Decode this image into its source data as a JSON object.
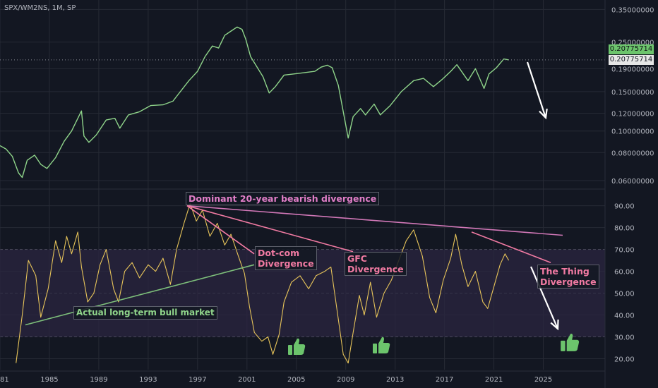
{
  "symbol_label": "SPX/WM2NS, 1M, SP",
  "colors": {
    "background": "#131722",
    "price_line": "#8fd48a",
    "osc_line": "#e8c55a",
    "band_fill": "#2b2640",
    "pink": "#f07aa2",
    "green_line": "#7dbf7a",
    "white_arrow": "#ffffff",
    "grid": "#262a35",
    "badge_bg": "#6cc46c",
    "icon": "#6cc46c"
  },
  "price_badges": {
    "current": "0.20775714",
    "last": "0.20775714"
  },
  "chart_data": [
    {
      "type": "line",
      "name": "price",
      "title": "SPX/WM2NS, 1M, SP",
      "scale": "log",
      "ylim": [
        0.055,
        0.38
      ],
      "xlim": [
        1981,
        2030
      ],
      "y_ticks": [
        "0.35000000",
        "0.25000000",
        "0.19000000",
        "0.15000000",
        "0.12000000",
        "0.10000000",
        "0.08000000",
        "0.06000000"
      ],
      "y_tick_values": [
        0.35,
        0.25,
        0.19,
        0.15,
        0.12,
        0.1,
        0.08,
        0.06
      ],
      "points": [
        [
          1981,
          0.086
        ],
        [
          1981.5,
          0.083
        ],
        [
          1982,
          0.077
        ],
        [
          1982.5,
          0.065
        ],
        [
          1982.8,
          0.062
        ],
        [
          1983.2,
          0.074
        ],
        [
          1983.8,
          0.078
        ],
        [
          1984.3,
          0.071
        ],
        [
          1984.8,
          0.068
        ],
        [
          1985.5,
          0.076
        ],
        [
          1986.2,
          0.09
        ],
        [
          1986.8,
          0.1
        ],
        [
          1987.6,
          0.123
        ],
        [
          1987.8,
          0.095
        ],
        [
          1988.2,
          0.089
        ],
        [
          1988.8,
          0.096
        ],
        [
          1989.6,
          0.112
        ],
        [
          1990.3,
          0.114
        ],
        [
          1990.7,
          0.103
        ],
        [
          1991.4,
          0.118
        ],
        [
          1992.3,
          0.122
        ],
        [
          1993.2,
          0.13
        ],
        [
          1994.2,
          0.131
        ],
        [
          1995,
          0.136
        ],
        [
          1995.6,
          0.15
        ],
        [
          1996.3,
          0.168
        ],
        [
          1997,
          0.185
        ],
        [
          1997.6,
          0.215
        ],
        [
          1998.2,
          0.24
        ],
        [
          1998.7,
          0.235
        ],
        [
          1999.2,
          0.268
        ],
        [
          1999.8,
          0.282
        ],
        [
          2000.2,
          0.292
        ],
        [
          2000.6,
          0.285
        ],
        [
          2000.9,
          0.258
        ],
        [
          2001.3,
          0.215
        ],
        [
          2001.9,
          0.19
        ],
        [
          2002.3,
          0.175
        ],
        [
          2002.8,
          0.148
        ],
        [
          2003.3,
          0.158
        ],
        [
          2004,
          0.178
        ],
        [
          2004.8,
          0.18
        ],
        [
          2005.5,
          0.182
        ],
        [
          2006.5,
          0.185
        ],
        [
          2007,
          0.193
        ],
        [
          2007.5,
          0.197
        ],
        [
          2007.9,
          0.192
        ],
        [
          2008.4,
          0.16
        ],
        [
          2008.8,
          0.122
        ],
        [
          2009.2,
          0.093
        ],
        [
          2009.6,
          0.116
        ],
        [
          2010.2,
          0.126
        ],
        [
          2010.6,
          0.118
        ],
        [
          2011.3,
          0.132
        ],
        [
          2011.8,
          0.118
        ],
        [
          2012.6,
          0.13
        ],
        [
          2013.5,
          0.15
        ],
        [
          2014.5,
          0.168
        ],
        [
          2015.3,
          0.172
        ],
        [
          2016.1,
          0.158
        ],
        [
          2016.8,
          0.17
        ],
        [
          2017.5,
          0.185
        ],
        [
          2018,
          0.198
        ],
        [
          2018.9,
          0.168
        ],
        [
          2019.5,
          0.19
        ],
        [
          2020.2,
          0.155
        ],
        [
          2020.6,
          0.18
        ],
        [
          2021.2,
          0.192
        ],
        [
          2021.8,
          0.21
        ],
        [
          2022.2,
          0.208
        ]
      ]
    },
    {
      "type": "line",
      "name": "oscillator",
      "ylim": [
        15,
        97
      ],
      "xlim": [
        1981,
        2030
      ],
      "y_ticks": [
        "90.00",
        "80.00",
        "70.00",
        "60.00",
        "50.00",
        "40.00",
        "30.00",
        "20.00"
      ],
      "y_tick_values": [
        90,
        80,
        70,
        60,
        50,
        40,
        30,
        20
      ],
      "band": [
        30,
        70
      ],
      "midline": 50,
      "x_ticks": [
        "1981",
        "1985",
        "1989",
        "1993",
        "1997",
        "2001",
        "2005",
        "2009",
        "2013",
        "2017",
        "2021",
        "2025"
      ],
      "x_tick_values": [
        1981,
        1985,
        1989,
        1993,
        1997,
        2001,
        2005,
        2009,
        2013,
        2017,
        2021,
        2025
      ],
      "points": [
        [
          1982.3,
          18
        ],
        [
          1982.8,
          40
        ],
        [
          1983.3,
          65
        ],
        [
          1983.9,
          58
        ],
        [
          1984.3,
          39
        ],
        [
          1984.9,
          52
        ],
        [
          1985.5,
          74
        ],
        [
          1986,
          64
        ],
        [
          1986.4,
          76
        ],
        [
          1986.8,
          68
        ],
        [
          1987.3,
          78
        ],
        [
          1987.6,
          62
        ],
        [
          1988.1,
          46
        ],
        [
          1988.6,
          50
        ],
        [
          1989.1,
          63
        ],
        [
          1989.6,
          70
        ],
        [
          1990.2,
          52
        ],
        [
          1990.6,
          46
        ],
        [
          1991.1,
          60
        ],
        [
          1991.7,
          64
        ],
        [
          1992.3,
          57
        ],
        [
          1993,
          63
        ],
        [
          1993.6,
          60
        ],
        [
          1994.2,
          66
        ],
        [
          1994.8,
          54
        ],
        [
          1995.3,
          70
        ],
        [
          1995.9,
          82
        ],
        [
          1996.4,
          91
        ],
        [
          1996.9,
          83
        ],
        [
          1997.4,
          88
        ],
        [
          1998,
          76
        ],
        [
          1998.6,
          82
        ],
        [
          1999.2,
          72
        ],
        [
          1999.7,
          77
        ],
        [
          2000.3,
          67
        ],
        [
          2000.8,
          59
        ],
        [
          2001.2,
          44
        ],
        [
          2001.6,
          32
        ],
        [
          2002.2,
          28
        ],
        [
          2002.7,
          30
        ],
        [
          2003.1,
          22
        ],
        [
          2003.6,
          31
        ],
        [
          2004,
          46
        ],
        [
          2004.6,
          55
        ],
        [
          2005.3,
          58
        ],
        [
          2006,
          52
        ],
        [
          2006.6,
          58
        ],
        [
          2007.3,
          60
        ],
        [
          2007.8,
          62
        ],
        [
          2008.3,
          42
        ],
        [
          2008.8,
          22
        ],
        [
          2009.2,
          18
        ],
        [
          2009.6,
          32
        ],
        [
          2010.1,
          49
        ],
        [
          2010.5,
          40
        ],
        [
          2011,
          55
        ],
        [
          2011.5,
          39
        ],
        [
          2012.1,
          50
        ],
        [
          2012.7,
          56
        ],
        [
          2013.3,
          65
        ],
        [
          2013.9,
          74
        ],
        [
          2014.5,
          79
        ],
        [
          2015.2,
          67
        ],
        [
          2015.8,
          48
        ],
        [
          2016.3,
          41
        ],
        [
          2016.9,
          56
        ],
        [
          2017.5,
          66
        ],
        [
          2017.9,
          77
        ],
        [
          2018.4,
          63
        ],
        [
          2018.9,
          53
        ],
        [
          2019.5,
          60
        ],
        [
          2020.1,
          46
        ],
        [
          2020.5,
          43
        ],
        [
          2021,
          53
        ],
        [
          2021.5,
          63
        ],
        [
          2021.9,
          68
        ],
        [
          2022.2,
          65
        ]
      ]
    }
  ],
  "annotations": {
    "dominant": "Dominant 20-year bearish divergence",
    "dotcom": "Dot-com\nDivergence",
    "gfc": "GFC\nDivergence",
    "thing": "The Thing\nDivergence",
    "bull": "Actual long-term bull market"
  },
  "icons": [
    "thumbs-up-icon",
    "thumbs-up-icon",
    "thumbs-up-icon"
  ]
}
